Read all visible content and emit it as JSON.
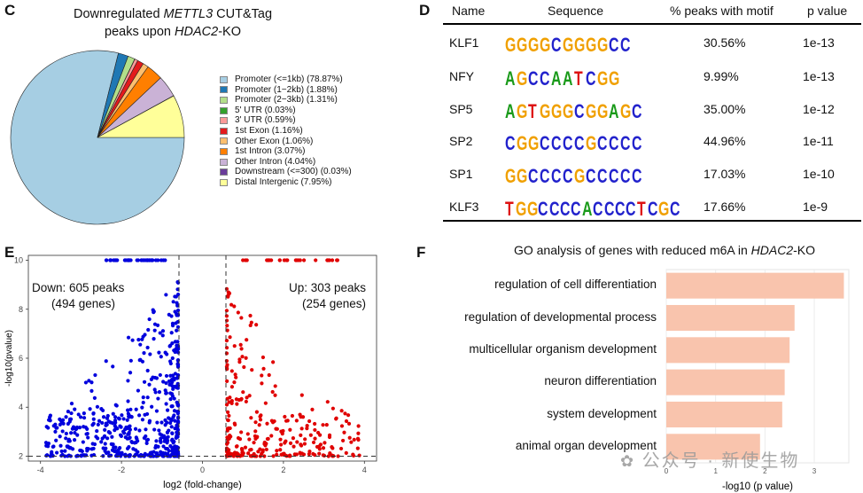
{
  "panel_labels": {
    "c": "C",
    "d": "D",
    "e": "E",
    "f": "F"
  },
  "panel_c": {
    "title_pre": "Downregulated ",
    "title_italic": "METTL3",
    "title_post": " CUT&Tag",
    "title_line2_pre": "peaks upon ",
    "title_line2_italic": "HDAC2",
    "title_line2_post": "-KO"
  },
  "panel_d": {
    "headers": {
      "name": "Name",
      "sequence": "Sequence",
      "pct": "% peaks with motif",
      "pval": "p value"
    },
    "rows": [
      {
        "name": "KLF1",
        "motif": "GGGGCGGGGCC",
        "pct": "30.56%",
        "pval": "1e-13"
      },
      {
        "name": "NFY",
        "motif": "AGCCAATCGG",
        "pct": "9.99%",
        "pval": "1e-13"
      },
      {
        "name": "SP5",
        "motif": "AGTGGGCGGAGC",
        "pct": "35.00%",
        "pval": "1e-12"
      },
      {
        "name": "SP2",
        "motif": "CGGCCCCGCCCC",
        "pct": "44.96%",
        "pval": "1e-11"
      },
      {
        "name": "SP1",
        "motif": "GGCCCCGCCCCC",
        "pct": "17.03%",
        "pval": "1e-10"
      },
      {
        "name": "KLF3",
        "motif": "TGGCCCCACCCCTCGC",
        "pct": "17.66%",
        "pval": "1e-9"
      }
    ]
  },
  "panel_e": {
    "down_label_1": "Down: 605 peaks",
    "down_label_2": "(494 genes)",
    "up_label_1": "Up: 303 peaks",
    "up_label_2": "(254 genes)"
  },
  "panel_f": {
    "title_pre": "GO analysis of genes with reduced m6A in ",
    "title_italic": "HDAC2",
    "title_post": "-KO"
  },
  "watermark": "公众号 · 新使生物",
  "colors": {
    "down": "#0000dd",
    "up": "#e00000",
    "bar": "#f9c4ad",
    "A": "#1a9a1a",
    "C": "#2222cc",
    "G": "#f0a000",
    "T": "#dd1111"
  },
  "chart_data": [
    {
      "type": "pie",
      "title": "Downregulated METTL3 CUT&Tag peaks upon HDAC2-KO",
      "categories": [
        "Promoter (<=1kb)",
        "Promoter (1-2kb)",
        "Promoter (2-3kb)",
        "5' UTR",
        "3' UTR",
        "1st Exon",
        "Other Exon",
        "1st Intron",
        "Other Intron",
        "Downstream (<=300)",
        "Distal Intergenic"
      ],
      "labels": [
        "Promoter (<=1kb) (78.87%)",
        "Promoter (1−2kb) (1.88%)",
        "Promoter (2−3kb) (1.31%)",
        "5' UTR (0.03%)",
        "3' UTR (0.59%)",
        "1st Exon (1.16%)",
        "Other Exon (1.06%)",
        "1st Intron (3.07%)",
        "Other Intron (4.04%)",
        "Downstream (<=300) (0.03%)",
        "Distal Intergenic (7.95%)"
      ],
      "values": [
        78.87,
        1.88,
        1.31,
        0.03,
        0.59,
        1.16,
        1.06,
        3.07,
        4.04,
        0.03,
        7.95
      ],
      "colors": [
        "#a6cee3",
        "#1f78b4",
        "#b2df8a",
        "#33a02c",
        "#fb9a99",
        "#e31a1c",
        "#fdbf6f",
        "#ff7f00",
        "#cab2d6",
        "#6a3d9a",
        "#ffff99"
      ],
      "legend": "right"
    },
    {
      "type": "scatter",
      "title": "",
      "xlabel": "log2 (fold-change)",
      "ylabel": "-log10(pvalue)",
      "xlim": [
        -4.3,
        4.3
      ],
      "ylim": [
        1.8,
        10.2
      ],
      "xticks": [
        -4,
        -2,
        0,
        2,
        4
      ],
      "yticks": [
        2,
        4,
        6,
        8,
        10
      ],
      "thresholds": {
        "x": [
          -0.58,
          0.58
        ],
        "y": 2
      },
      "series": [
        {
          "name": "Down",
          "color": "#0000dd",
          "count": 605,
          "x_range": [
            -3.9,
            -0.6
          ],
          "y_range": [
            2.0,
            10.0
          ]
        },
        {
          "name": "Up",
          "color": "#e00000",
          "count": 303,
          "x_range": [
            0.6,
            4.0
          ],
          "y_range": [
            2.0,
            10.0
          ]
        }
      ],
      "grid": false
    },
    {
      "type": "bar",
      "orientation": "horizontal",
      "title": "GO analysis of genes with reduced m6A in HDAC2-KO",
      "categories": [
        "regulation of cell differentiation",
        "regulation of developmental process",
        "multicellular organism development",
        "neuron differentiation",
        "system development",
        "animal organ development"
      ],
      "values": [
        3.6,
        2.6,
        2.5,
        2.4,
        2.35,
        1.9
      ],
      "xlabel": "-log10 (p value)",
      "xlim": [
        0,
        3.7
      ],
      "xticks": [
        0,
        1,
        2,
        3
      ],
      "grid": true
    }
  ]
}
